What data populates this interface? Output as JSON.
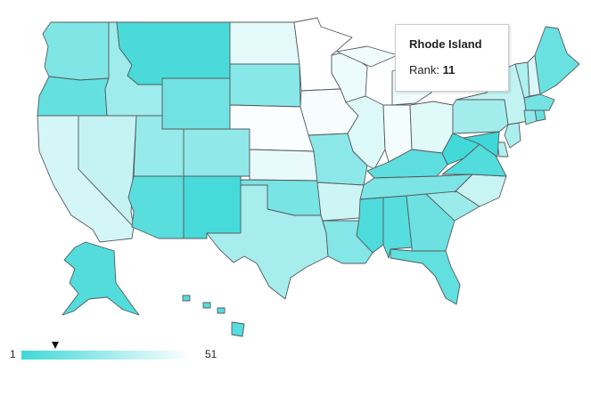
{
  "tooltip": {
    "title": "Rhode Island",
    "rank_label": "Rank:",
    "rank_value": "11"
  },
  "legend": {
    "min": "1",
    "max": "51",
    "marker_value": 11,
    "color_min": "#3fd8d8",
    "color_max": "#ffffff"
  },
  "map_data": {
    "type": "choropleth",
    "region": "United States",
    "metric": "Rank",
    "states": [
      {
        "name": "Washington",
        "rank": 18
      },
      {
        "name": "Oregon",
        "rank": 11
      },
      {
        "name": "California",
        "rank": 40
      },
      {
        "name": "Nevada",
        "rank": 36
      },
      {
        "name": "Idaho",
        "rank": 26
      },
      {
        "name": "Montana",
        "rank": 4
      },
      {
        "name": "Wyoming",
        "rank": 14
      },
      {
        "name": "Utah",
        "rank": 24
      },
      {
        "name": "Colorado",
        "rank": 22
      },
      {
        "name": "Arizona",
        "rank": 8
      },
      {
        "name": "New Mexico",
        "rank": 3
      },
      {
        "name": "North Dakota",
        "rank": 44
      },
      {
        "name": "South Dakota",
        "rank": 20
      },
      {
        "name": "Nebraska",
        "rank": 50
      },
      {
        "name": "Kansas",
        "rank": 45
      },
      {
        "name": "Oklahoma",
        "rank": 16
      },
      {
        "name": "Texas",
        "rank": 28
      },
      {
        "name": "Minnesota",
        "rank": 51
      },
      {
        "name": "Iowa",
        "rank": 49
      },
      {
        "name": "Missouri",
        "rank": 21
      },
      {
        "name": "Arkansas",
        "rank": 38
      },
      {
        "name": "Louisiana",
        "rank": 19
      },
      {
        "name": "Wisconsin",
        "rank": 46
      },
      {
        "name": "Illinois",
        "rank": 42
      },
      {
        "name": "Michigan",
        "rank": 47
      },
      {
        "name": "Indiana",
        "rank": 48
      },
      {
        "name": "Ohio",
        "rank": 43
      },
      {
        "name": "Kentucky",
        "rank": 9
      },
      {
        "name": "Tennessee",
        "rank": 17
      },
      {
        "name": "Mississippi",
        "rank": 5
      },
      {
        "name": "Alabama",
        "rank": 7
      },
      {
        "name": "Georgia",
        "rank": 13
      },
      {
        "name": "Florida",
        "rank": 10
      },
      {
        "name": "South Carolina",
        "rank": 25
      },
      {
        "name": "North Carolina",
        "rank": 37
      },
      {
        "name": "Virginia",
        "rank": 6
      },
      {
        "name": "West Virginia",
        "rank": 2
      },
      {
        "name": "Pennsylvania",
        "rank": 27
      },
      {
        "name": "New York",
        "rank": 35
      },
      {
        "name": "Vermont",
        "rank": 30
      },
      {
        "name": "New Hampshire",
        "rank": 41
      },
      {
        "name": "Maine",
        "rank": 12
      },
      {
        "name": "Massachusetts",
        "rank": 15
      },
      {
        "name": "Rhode Island",
        "rank": 11
      },
      {
        "name": "Connecticut",
        "rank": 23
      },
      {
        "name": "New Jersey",
        "rank": 29
      },
      {
        "name": "Delaware",
        "rank": 31
      },
      {
        "name": "Maryland",
        "rank": 1
      },
      {
        "name": "Alaska",
        "rank": 6
      },
      {
        "name": "Hawaii",
        "rank": 7
      }
    ]
  }
}
